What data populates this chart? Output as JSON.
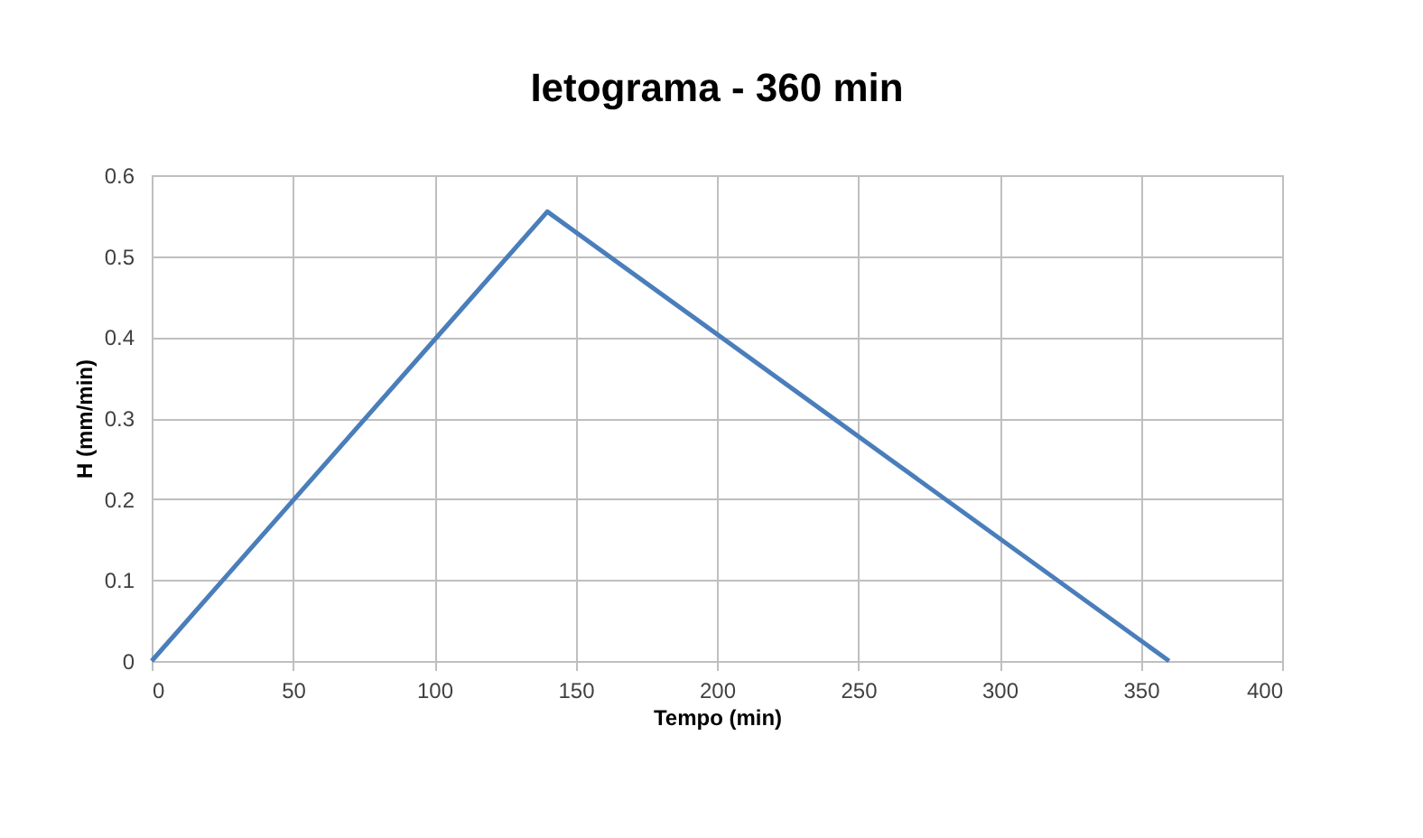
{
  "chart_data": {
    "type": "line",
    "title": "Ietograma - 360 min",
    "xlabel": "Tempo (min)",
    "ylabel": "H (mm/min)",
    "x": [
      0,
      140,
      360
    ],
    "series": [
      {
        "color": "#4a7ebb",
        "values": [
          0,
          0.555,
          0
        ]
      }
    ],
    "xlim": [
      0,
      400
    ],
    "xticks": [
      0,
      50,
      100,
      150,
      200,
      250,
      300,
      350,
      400
    ],
    "ylim": [
      0,
      0.6
    ],
    "yticks": [
      0,
      0.1,
      0.2,
      0.3,
      0.4,
      0.5,
      0.6
    ],
    "grid": true,
    "marker": "none",
    "line_style": "solid",
    "legend": false
  }
}
